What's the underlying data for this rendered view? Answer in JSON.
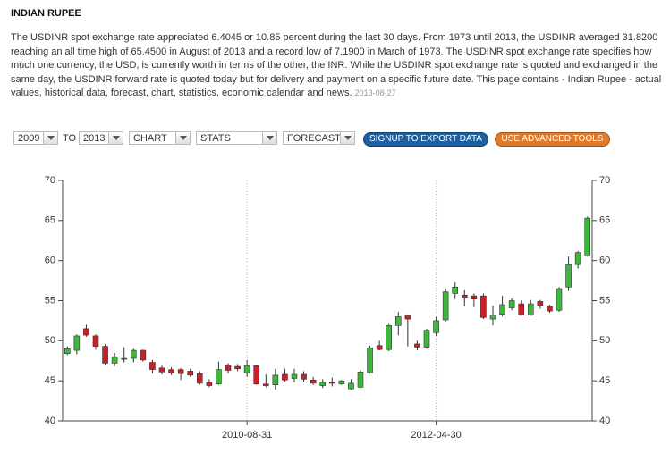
{
  "header": {
    "title": "INDIAN RUPEE",
    "description": "The USDINR spot exchange rate appreciated 6.4045 or 10.85 percent during the last 30 days.  From 1973 until 2013, the USDINR averaged 31.8200 reaching an all time high of 65.4500 in August of 2013 and a record low of 7.1900 in March of 1973. The USDINR spot exchange rate specifies how much one currency, the USD, is currently worth in terms of the other, the INR. While the USDINR spot exchange rate is quoted and exchanged in the same day, the USDINR forward rate is quoted today but for delivery and payment on a specific future date. This page contains - Indian Rupee - actual values, historical data, forecast, chart, statistics, economic calendar and news.",
    "date": "2013-08-27"
  },
  "controls": {
    "from": "2009",
    "to_label": "TO",
    "to": "2013",
    "chart": "CHART",
    "stats": "STATS",
    "forecast": "FORECAST",
    "signup": "SIGNUP TO EXPORT DATA",
    "advanced": "USE ADVANCED TOOLS"
  },
  "chart_data": {
    "type": "candlestick",
    "categories": [
      null,
      null,
      null,
      null,
      null,
      null,
      null,
      null,
      null,
      null,
      null,
      null,
      null,
      null,
      null,
      null,
      null,
      null,
      null,
      "2010-08-31",
      null,
      null,
      null,
      null,
      null,
      null,
      null,
      null,
      null,
      null,
      null,
      null,
      null,
      null,
      null,
      null,
      null,
      null,
      null,
      "2012-04-30",
      null,
      null,
      null,
      null,
      null,
      null,
      null,
      null,
      null,
      null,
      null,
      null,
      null,
      null,
      null,
      null
    ],
    "open": [
      48.4,
      48.8,
      51.5,
      50.6,
      49.3,
      47.2,
      47.7,
      47.8,
      48.8,
      47.3,
      46.6,
      46.4,
      46.4,
      46.2,
      45.9,
      44.8,
      44.6,
      47.0,
      46.8,
      46.0,
      46.9,
      44.6,
      44.5,
      45.8,
      45.3,
      45.8,
      45.1,
      44.4,
      44.8,
      44.6,
      44.0,
      44.2,
      46.0,
      49.4,
      48.9,
      51.9,
      53.2,
      49.6,
      49.2,
      51.0,
      52.6,
      55.9,
      55.7,
      55.6,
      55.6,
      52.7,
      53.3,
      54.1,
      54.6,
      53.2,
      54.9,
      54.3,
      53.8,
      56.7,
      59.5,
      60.6
    ],
    "high": [
      49.3,
      50.8,
      52.0,
      50.8,
      49.6,
      48.5,
      49.2,
      49.0,
      48.9,
      47.6,
      46.9,
      46.7,
      46.6,
      46.5,
      46.2,
      45.2,
      47.4,
      47.2,
      47.1,
      47.6,
      47.0,
      45.8,
      46.5,
      46.5,
      46.5,
      46.2,
      45.5,
      45.2,
      45.4,
      45.1,
      45.2,
      46.3,
      49.4,
      50.0,
      52.1,
      53.6,
      53.3,
      50.0,
      51.5,
      53.0,
      56.5,
      57.3,
      56.3,
      55.9,
      55.9,
      54.4,
      55.6,
      55.3,
      55.0,
      55.1,
      55.1,
      54.5,
      56.7,
      60.5,
      61.2,
      65.5
    ],
    "low": [
      48.2,
      48.3,
      50.5,
      48.9,
      47.0,
      46.8,
      47.3,
      47.3,
      47.4,
      45.9,
      45.8,
      45.7,
      45.1,
      45.5,
      44.5,
      44.2,
      44.5,
      45.9,
      46.2,
      45.5,
      44.5,
      44.2,
      43.9,
      44.9,
      44.8,
      44.9,
      44.5,
      44.1,
      44.3,
      44.5,
      43.9,
      44.1,
      45.9,
      48.8,
      48.7,
      50.7,
      49.3,
      48.8,
      49.0,
      50.6,
      52.4,
      55.2,
      54.3,
      54.2,
      52.7,
      51.9,
      53.0,
      53.8,
      53.1,
      53.1,
      54.0,
      53.5,
      53.6,
      56.2,
      59.0,
      60.5
    ],
    "close": [
      49.0,
      50.6,
      50.7,
      49.3,
      47.2,
      48.0,
      47.8,
      48.8,
      47.6,
      46.4,
      46.1,
      46.0,
      45.9,
      45.7,
      44.7,
      44.4,
      46.4,
      46.3,
      46.5,
      46.9,
      44.6,
      44.4,
      45.7,
      45.1,
      45.8,
      45.2,
      44.7,
      44.8,
      44.7,
      45.0,
      44.7,
      46.1,
      49.1,
      48.9,
      51.9,
      53.0,
      52.7,
      49.2,
      51.3,
      52.5,
      56.1,
      56.7,
      55.4,
      55.2,
      52.9,
      53.2,
      54.5,
      55.0,
      53.2,
      54.6,
      54.4,
      53.7,
      56.5,
      59.5,
      61.0,
      65.3
    ],
    "up_color": "#3cb83c",
    "down_color": "#c8202a",
    "ylim": [
      40,
      70
    ],
    "yticks": [
      40,
      45,
      50,
      55,
      60,
      65,
      70
    ],
    "xgrid": true,
    "right_axis": true
  }
}
